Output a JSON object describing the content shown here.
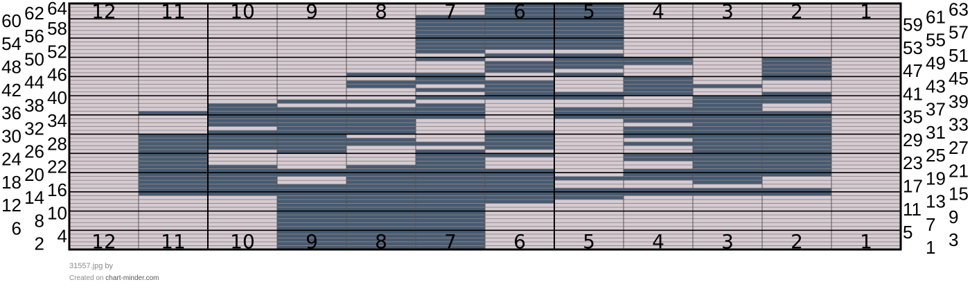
{
  "chart_data": {
    "type": "heatmap",
    "title": "",
    "columns": 12,
    "rows": 64,
    "column_labels_left_to_right": [
      12,
      11,
      10,
      9,
      8,
      7,
      6,
      5,
      4,
      3,
      2,
      1
    ],
    "left_row_labels": "even rows 2-64",
    "right_row_labels": "odd rows 1-63",
    "colors": {
      "light": "#d6cbd1",
      "dark": "#475b71",
      "grid": "#8c8489",
      "thick": "#000000"
    },
    "dark_cells_by_column": {
      "12": [],
      "11": [
        [
          15,
          30
        ],
        [
          36,
          36
        ]
      ],
      "10": [
        [
          15,
          22
        ],
        [
          27,
          31
        ],
        [
          33,
          38
        ]
      ],
      "9": [
        [
          1,
          17
        ],
        [
          20,
          21
        ],
        [
          26,
          37
        ],
        [
          39,
          39
        ]
      ],
      "8": [
        [
          1,
          22
        ],
        [
          28,
          29
        ],
        [
          31,
          37
        ],
        [
          39,
          39
        ],
        [
          43,
          44
        ],
        [
          46,
          46
        ]
      ],
      "7": [
        [
          1,
          26
        ],
        [
          28,
          28
        ],
        [
          35,
          38
        ],
        [
          40,
          40
        ],
        [
          42,
          42
        ],
        [
          44,
          46
        ],
        [
          50,
          50
        ],
        [
          52,
          61
        ]
      ],
      "6": [
        [
          13,
          21
        ],
        [
          25,
          25
        ],
        [
          27,
          31
        ],
        [
          40,
          44
        ],
        [
          47,
          49
        ],
        [
          51,
          51
        ],
        [
          53,
          64
        ]
      ],
      "5": [
        [
          14,
          16
        ],
        [
          19,
          19
        ],
        [
          35,
          37
        ],
        [
          40,
          41
        ],
        [
          46,
          46
        ],
        [
          48,
          51
        ],
        [
          53,
          64
        ]
      ],
      "4": [
        [
          15,
          16
        ],
        [
          19,
          21
        ],
        [
          24,
          25
        ],
        [
          28,
          28
        ],
        [
          30,
          32
        ],
        [
          34,
          37
        ],
        [
          41,
          45
        ],
        [
          49,
          50
        ]
      ],
      "3": [
        [
          15,
          16
        ],
        [
          18,
          40
        ],
        [
          43,
          43
        ]
      ],
      "2": [
        [
          15,
          16
        ],
        [
          20,
          36
        ],
        [
          39,
          41
        ],
        [
          45,
          50
        ]
      ],
      "1": []
    }
  },
  "footer": {
    "filename": "31557.jpg",
    "by": "by",
    "created_on": "Created on",
    "site": "chart-minder.com"
  }
}
